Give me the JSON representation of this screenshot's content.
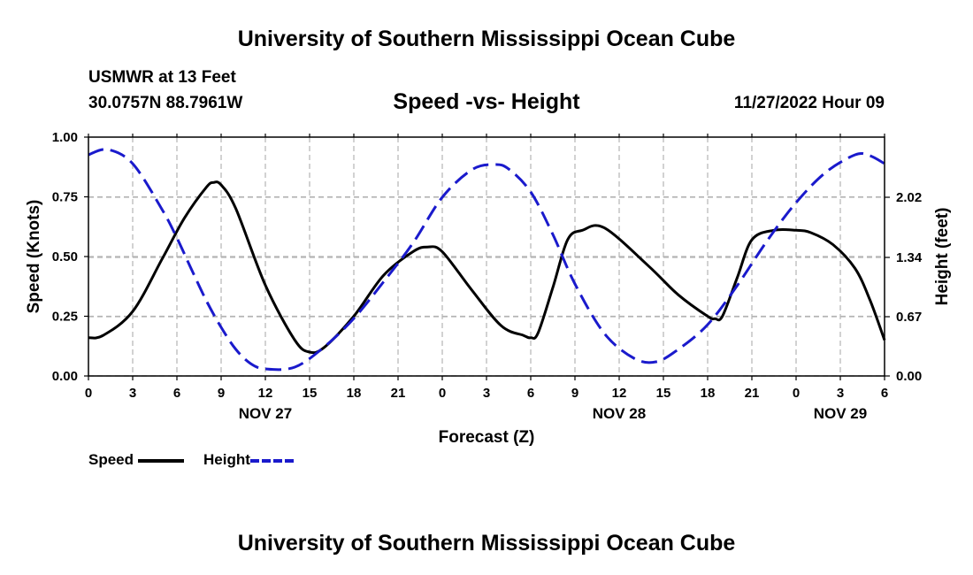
{
  "header": {
    "title": "University of Southern Mississippi Ocean Cube",
    "station": "USMWR at 13 Feet",
    "coordinates": "30.0757N  88.7961W",
    "chart_subtitle": "Speed -vs- Height",
    "datetime": "11/27/2022 Hour 09"
  },
  "footer": {
    "title": "University of Southern Mississippi Ocean Cube"
  },
  "legend": {
    "speed_label": "Speed",
    "height_label": "Height"
  },
  "colors": {
    "speed": "#000000",
    "height": "#1a1acc",
    "grid": "#b4b4b4"
  },
  "chart_data": {
    "type": "line",
    "title": "Speed -vs- Height",
    "xlabel": "Forecast (Z)",
    "ylabel": "Speed (Knots)",
    "y2label": "Height (feet)",
    "xlim": [
      0,
      54
    ],
    "ylim": [
      0,
      1.0
    ],
    "y2lim": [
      0,
      2.7
    ],
    "x_ticks": [
      0,
      3,
      6,
      9,
      12,
      15,
      18,
      21,
      24,
      27,
      30,
      33,
      36,
      39,
      42,
      45,
      48,
      51,
      54
    ],
    "x_tick_labels": [
      "0",
      "3",
      "6",
      "9",
      "12",
      "15",
      "18",
      "21",
      "0",
      "3",
      "6",
      "9",
      "12",
      "15",
      "18",
      "21",
      "0",
      "3",
      "6"
    ],
    "day_labels": [
      {
        "x": 12,
        "label": "NOV 27"
      },
      {
        "x": 36,
        "label": "NOV 28"
      },
      {
        "x": 51,
        "label": "NOV 29"
      }
    ],
    "y_ticks": [
      0.0,
      0.25,
      0.5,
      0.75,
      1.0
    ],
    "y_tick_labels": [
      "0.00",
      "0.25",
      "0.50",
      "0.75",
      "1.00"
    ],
    "y2_ticks": [
      0.0,
      0.67,
      1.34,
      2.02
    ],
    "y2_tick_labels": [
      "0.00",
      "0.67",
      "1.34",
      "2.02"
    ],
    "grid": true,
    "series": [
      {
        "name": "Speed",
        "axis": "left",
        "style": "solid",
        "x": [
          0,
          1,
          3,
          5,
          6.5,
          8,
          8.5,
          9,
          10,
          12,
          14,
          15,
          16,
          18,
          20,
          22,
          23,
          24,
          26,
          28,
          29.5,
          30,
          30.5,
          31.5,
          32.5,
          33.5,
          35,
          38,
          40,
          42,
          42.5,
          43,
          44,
          45,
          46.5,
          48,
          49,
          50.5,
          52,
          53,
          54
        ],
        "y": [
          0.16,
          0.17,
          0.27,
          0.49,
          0.66,
          0.79,
          0.81,
          0.8,
          0.7,
          0.38,
          0.15,
          0.1,
          0.12,
          0.25,
          0.42,
          0.52,
          0.54,
          0.52,
          0.36,
          0.21,
          0.17,
          0.16,
          0.18,
          0.37,
          0.57,
          0.61,
          0.62,
          0.46,
          0.34,
          0.25,
          0.24,
          0.25,
          0.41,
          0.57,
          0.61,
          0.61,
          0.6,
          0.55,
          0.45,
          0.32,
          0.15
        ]
      },
      {
        "name": "Height",
        "axis": "right",
        "style": "dashed",
        "x": [
          0,
          1.3,
          3,
          5,
          6,
          7,
          8,
          9,
          10,
          11,
          12,
          14,
          16,
          18,
          20,
          22,
          24,
          26,
          27.5,
          28.5,
          30,
          31.5,
          33,
          35,
          37,
          38.5,
          40,
          42,
          44,
          46,
          48,
          50,
          52,
          53,
          54
        ],
        "y": [
          2.5,
          2.56,
          2.4,
          1.88,
          1.56,
          1.2,
          0.85,
          0.55,
          0.3,
          0.14,
          0.08,
          0.1,
          0.33,
          0.65,
          1.06,
          1.5,
          2.02,
          2.33,
          2.39,
          2.34,
          2.08,
          1.6,
          1.04,
          0.48,
          0.2,
          0.16,
          0.3,
          0.58,
          1.02,
          1.52,
          1.96,
          2.3,
          2.5,
          2.49,
          2.4
        ]
      }
    ]
  }
}
